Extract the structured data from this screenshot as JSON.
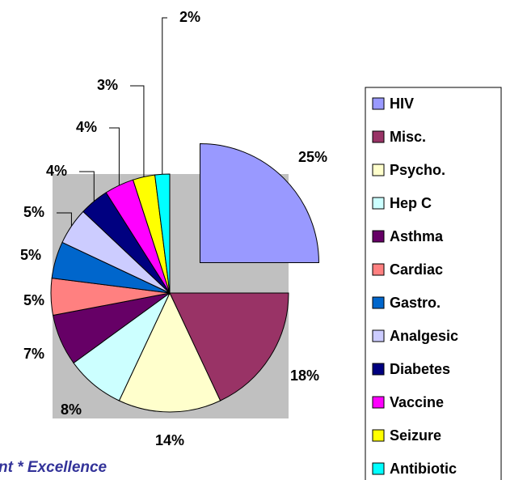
{
  "chart_data": {
    "type": "pie",
    "categories": [
      "HIV",
      "Misc.",
      "Psycho.",
      "Hep C",
      "Asthma",
      "Cardiac",
      "Gastro.",
      "Analgesic",
      "Diabetes",
      "Vaccine",
      "Seizure",
      "Antibiotic"
    ],
    "values": [
      25,
      18,
      14,
      8,
      7,
      5,
      5,
      5,
      4,
      4,
      3,
      2
    ],
    "value_labels": [
      "25%",
      "18%",
      "14%",
      "8%",
      "7%",
      "5%",
      "5%",
      "5%",
      "4%",
      "4%",
      "3%",
      "2%"
    ],
    "colors": [
      "#9999ff",
      "#993366",
      "#ffffcc",
      "#ccffff",
      "#660066",
      "#ff8080",
      "#0066cc",
      "#ccccff",
      "#000080",
      "#ff00ff",
      "#ffff00",
      "#00ffff"
    ],
    "legend": "right",
    "footer_text": "nt * Excellence"
  }
}
